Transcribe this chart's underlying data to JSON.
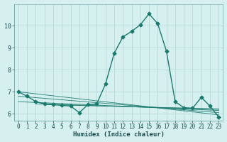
{
  "xlabel": "Humidex (Indice chaleur)",
  "bg_color": "#d6f0f0",
  "grid_color": "#b8d8d8",
  "line_color": "#1a7a6e",
  "marker": "D",
  "marker_size": 2.5,
  "line_width": 1.0,
  "xlim": [
    -0.5,
    23.5
  ],
  "ylim": [
    5.7,
    11.0
  ],
  "yticks": [
    6,
    7,
    8,
    9,
    10
  ],
  "xticks": [
    0,
    1,
    2,
    3,
    4,
    5,
    6,
    7,
    8,
    9,
    10,
    11,
    12,
    13,
    14,
    15,
    16,
    17,
    18,
    19,
    20,
    21,
    22,
    23
  ],
  "series": [
    [
      0,
      7.0
    ],
    [
      1,
      6.8
    ],
    [
      2,
      6.55
    ],
    [
      3,
      6.45
    ],
    [
      4,
      6.42
    ],
    [
      5,
      6.38
    ],
    [
      6,
      6.35
    ],
    [
      7,
      6.05
    ],
    [
      8,
      6.42
    ],
    [
      9,
      6.45
    ],
    [
      10,
      7.35
    ],
    [
      11,
      8.75
    ],
    [
      12,
      9.5
    ],
    [
      13,
      9.75
    ],
    [
      14,
      10.05
    ],
    [
      15,
      10.55
    ],
    [
      16,
      10.1
    ],
    [
      17,
      8.85
    ],
    [
      18,
      6.55
    ],
    [
      19,
      6.28
    ],
    [
      20,
      6.25
    ],
    [
      21,
      6.75
    ],
    [
      22,
      6.35
    ],
    [
      23,
      5.85
    ]
  ],
  "extra_lines": [
    {
      "x": [
        0,
        23
      ],
      "y": [
        7.0,
        5.95
      ]
    },
    {
      "x": [
        0,
        23
      ],
      "y": [
        6.8,
        6.05
      ]
    },
    {
      "x": [
        0,
        23
      ],
      "y": [
        6.55,
        6.15
      ]
    },
    {
      "x": [
        2,
        23
      ],
      "y": [
        6.45,
        6.2
      ]
    },
    {
      "x": [
        3,
        23
      ],
      "y": [
        6.42,
        6.22
      ]
    }
  ]
}
